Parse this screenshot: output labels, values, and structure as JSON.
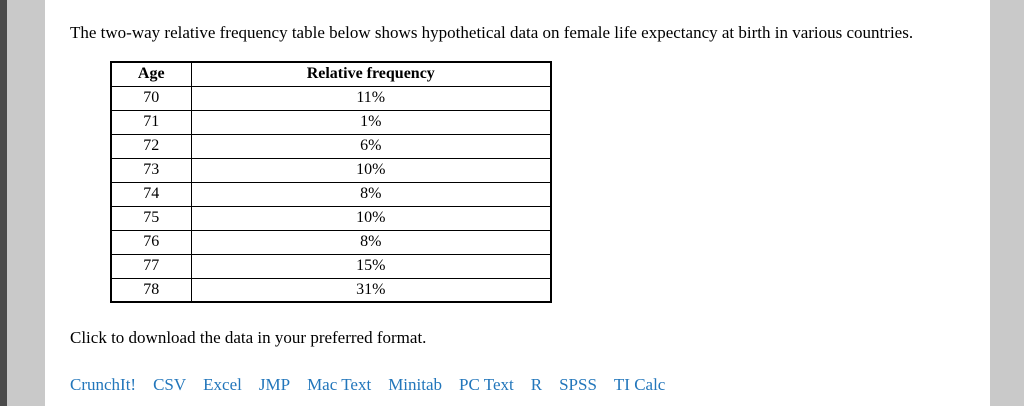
{
  "page": {
    "intro": "The two-way relative frequency table below shows hypothetical data on female life expectancy at birth in various countries.",
    "download_prompt": "Click to download the data in your preferred format."
  },
  "table": {
    "headers": [
      "Age",
      "Relative frequency"
    ],
    "rows": [
      [
        "70",
        "11%"
      ],
      [
        "71",
        "1%"
      ],
      [
        "72",
        "6%"
      ],
      [
        "73",
        "10%"
      ],
      [
        "74",
        "8%"
      ],
      [
        "75",
        "10%"
      ],
      [
        "76",
        "8%"
      ],
      [
        "77",
        "15%"
      ],
      [
        "78",
        "31%"
      ]
    ]
  },
  "download_links": [
    "CrunchIt!",
    "CSV",
    "Excel",
    "JMP",
    "Mac Text",
    "Minitab",
    "PC Text",
    "R",
    "SPSS",
    "TI Calc"
  ],
  "colors": {
    "link": "#2276bb",
    "page_background": "#c9c9c9",
    "content_background": "#ffffff"
  }
}
